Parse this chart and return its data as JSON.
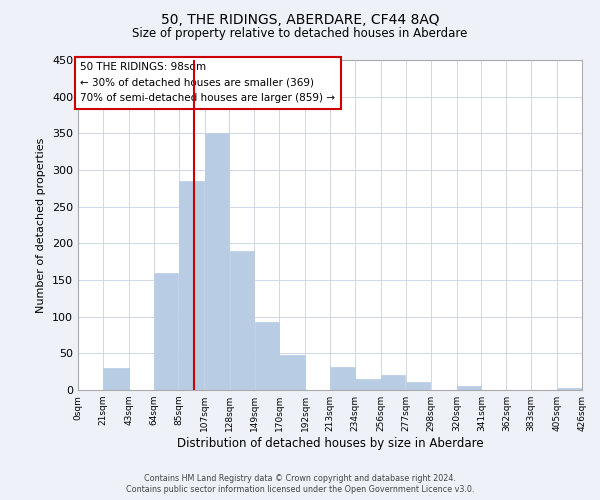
{
  "title": "50, THE RIDINGS, ABERDARE, CF44 8AQ",
  "subtitle": "Size of property relative to detached houses in Aberdare",
  "xlabel": "Distribution of detached houses by size in Aberdare",
  "ylabel": "Number of detached properties",
  "bar_left_edges": [
    0,
    21,
    43,
    64,
    85,
    107,
    128,
    149,
    170,
    192,
    213,
    234,
    256,
    277,
    298,
    320,
    341,
    362,
    383,
    405
  ],
  "bar_widths": [
    21,
    22,
    21,
    21,
    22,
    21,
    21,
    21,
    22,
    21,
    21,
    22,
    21,
    21,
    22,
    21,
    21,
    21,
    22,
    21
  ],
  "bar_heights": [
    0,
    30,
    0,
    160,
    285,
    350,
    190,
    93,
    48,
    0,
    32,
    15,
    20,
    11,
    0,
    5,
    0,
    0,
    0,
    3
  ],
  "tick_labels": [
    "0sqm",
    "21sqm",
    "43sqm",
    "64sqm",
    "85sqm",
    "107sqm",
    "128sqm",
    "149sqm",
    "170sqm",
    "192sqm",
    "213sqm",
    "234sqm",
    "256sqm",
    "277sqm",
    "298sqm",
    "320sqm",
    "341sqm",
    "362sqm",
    "383sqm",
    "405sqm",
    "426sqm"
  ],
  "tick_positions": [
    0,
    21,
    43,
    64,
    85,
    107,
    128,
    149,
    170,
    192,
    213,
    234,
    256,
    277,
    298,
    320,
    341,
    362,
    383,
    405,
    426
  ],
  "bar_color": "#b8cce4",
  "bar_edge_color": "#b8cce4",
  "vline_x": 98,
  "vline_color": "#cc0000",
  "ylim": [
    0,
    450
  ],
  "yticks": [
    0,
    50,
    100,
    150,
    200,
    250,
    300,
    350,
    400,
    450
  ],
  "annotation_lines": [
    "50 THE RIDINGS: 98sqm",
    "← 30% of detached houses are smaller (369)",
    "70% of semi-detached houses are larger (859) →"
  ],
  "footer_line1": "Contains HM Land Registry data © Crown copyright and database right 2024.",
  "footer_line2": "Contains public sector information licensed under the Open Government Licence v3.0.",
  "background_color": "#eef2f8",
  "plot_bg_color": "#ffffff",
  "grid_color": "#d0d8e8"
}
